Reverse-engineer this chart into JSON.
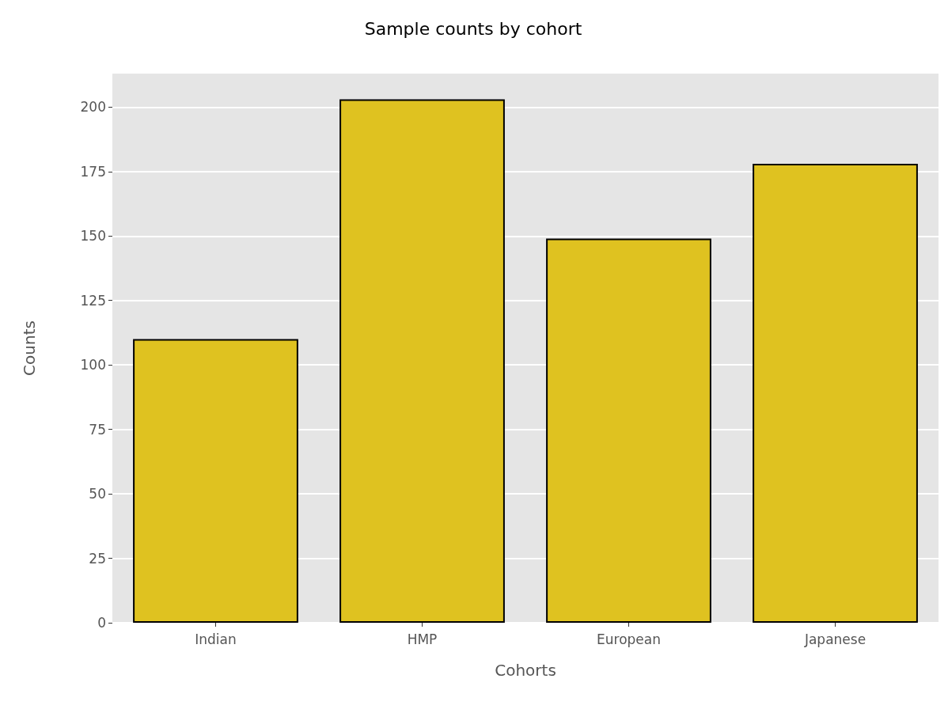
{
  "chart_data": {
    "type": "bar",
    "title": "Sample counts by cohort",
    "xlabel": "Cohorts",
    "ylabel": "Counts",
    "categories": [
      "Indian",
      "HMP",
      "European",
      "Japanese"
    ],
    "values": [
      110,
      203,
      149,
      178
    ],
    "color": "#dfc220",
    "ylim": [
      0,
      213
    ],
    "yticks": [
      0,
      25,
      50,
      75,
      100,
      125,
      150,
      175,
      200
    ],
    "grid": "y"
  }
}
